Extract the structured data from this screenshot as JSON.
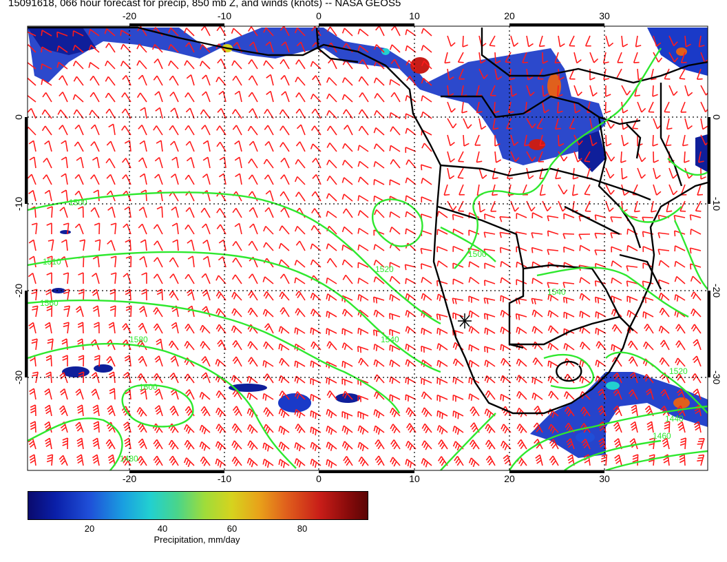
{
  "title": "15091618, 066 hour forecast for precip, 850 mb Z, and winds (knots) -- NASA GEOS5",
  "map": {
    "lon_ticks": [
      "-20",
      "-10",
      "0",
      "10",
      "20",
      "30"
    ],
    "lat_ticks": [
      "0",
      "-10",
      "-20",
      "-30"
    ],
    "contour_labels": [
      "1500",
      "1510",
      "1520",
      "1540",
      "1560",
      "1580",
      "1600",
      "1440",
      "1460",
      "1480",
      "1500",
      "1520",
      "1540"
    ],
    "colors": {
      "contour": "#2ee82e",
      "wind_barb": "#ff1a1a",
      "coastline": "#000000"
    }
  },
  "colorbar": {
    "ticks": [
      "20",
      "40",
      "60",
      "80"
    ],
    "label": "Precipitation, mm/day"
  }
}
